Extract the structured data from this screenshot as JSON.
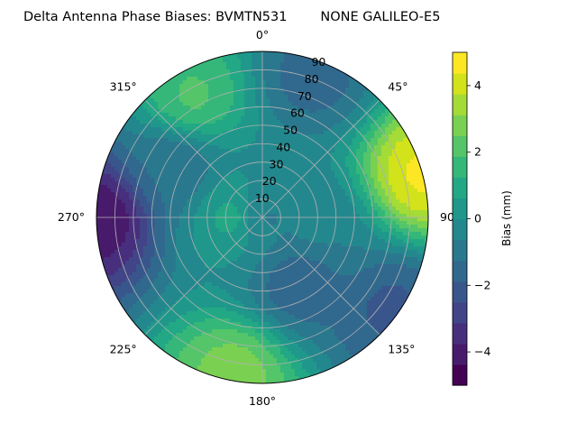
{
  "title": "Delta Antenna Phase Biases: BVMTN531        NONE GALILEO-E5",
  "chart_data": {
    "type": "polar-contour",
    "title": "Delta Antenna Phase Biases: BVMTN531        NONE GALILEO-E5",
    "azimuth_ticks": [
      {
        "angle": 0,
        "label": "0°"
      },
      {
        "angle": 45,
        "label": "45°"
      },
      {
        "angle": 90,
        "label": "90°"
      },
      {
        "angle": 135,
        "label": "135°"
      },
      {
        "angle": 180,
        "label": "180°"
      },
      {
        "angle": 225,
        "label": "225°"
      },
      {
        "angle": 270,
        "label": "270°"
      },
      {
        "angle": 315,
        "label": "315°"
      }
    ],
    "radial_ticks": [
      10,
      20,
      30,
      40,
      50,
      60,
      70,
      80,
      90
    ],
    "radial_range": [
      0,
      90
    ],
    "grid": true,
    "colorbar": {
      "label": "Bias (mm)",
      "range": [
        -5,
        5
      ],
      "ticks": [
        -4,
        -2,
        0,
        2,
        4
      ],
      "levels": [
        -5,
        -4.5,
        -4,
        -3.5,
        -3,
        -2.5,
        -2,
        -1.5,
        -1,
        -0.5,
        0,
        0.5,
        1,
        1.5,
        2,
        2.5,
        3,
        3.5,
        4,
        4.5,
        5
      ],
      "colormap": [
        "#440154",
        "#481a6c",
        "#472f7d",
        "#414487",
        "#39568c",
        "#31688e",
        "#2a788e",
        "#23888e",
        "#1f988b",
        "#22a884",
        "#35b779",
        "#54c568",
        "#7ad151",
        "#a5db36",
        "#d2e21b",
        "#fde725"
      ]
    },
    "regions": [
      {
        "azimuth": 0,
        "zenith": 0,
        "bias": -0.8
      },
      {
        "azimuth": 270,
        "zenith": 15,
        "bias": 1.0
      },
      {
        "azimuth": 100,
        "zenith": 30,
        "bias": -0.5
      },
      {
        "azimuth": 150,
        "zenith": 40,
        "bias": -1.8
      },
      {
        "azimuth": 330,
        "zenith": 75,
        "bias": 2.0
      },
      {
        "azimuth": 20,
        "zenith": 80,
        "bias": -1.5
      },
      {
        "azimuth": 75,
        "zenith": 89,
        "bias": 4.5
      },
      {
        "azimuth": 125,
        "zenith": 85,
        "bias": -2.0
      },
      {
        "azimuth": 190,
        "zenith": 85,
        "bias": 2.8
      },
      {
        "azimuth": 270,
        "zenith": 89,
        "bias": -4.3
      },
      {
        "azimuth": 300,
        "zenith": 55,
        "bias": -1.2
      }
    ]
  }
}
